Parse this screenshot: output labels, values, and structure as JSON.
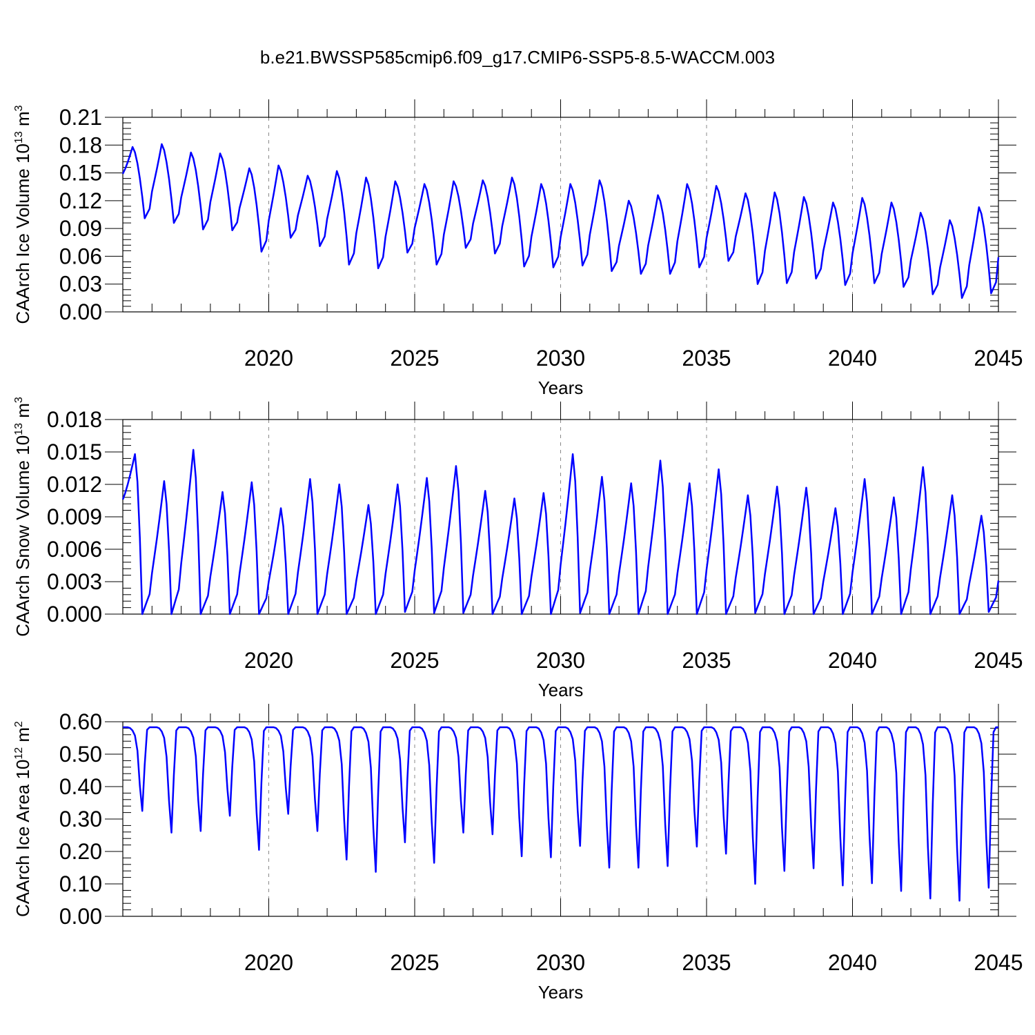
{
  "title": "b.e21.BWSSP585cmip6.f09_g17.CMIP6-SSP5-8.5-WACCM.003",
  "colors": {
    "series": "#0000ff",
    "axis": "#000000",
    "grid": "#888888"
  },
  "chart_data": [
    {
      "type": "line",
      "name": "ice-volume",
      "ylabel": {
        "text": "CAArch Ice Volume 10",
        "exp": "13",
        "unit": " m",
        "unit_exp": "3"
      },
      "xlabel": "Years",
      "xlim": [
        2015,
        2045
      ],
      "ylim": [
        0,
        0.21
      ],
      "xticks": [
        2020,
        2025,
        2030,
        2035,
        2040,
        2045
      ],
      "yticks": [
        0.0,
        0.03,
        0.06,
        0.09,
        0.12,
        0.15,
        0.18,
        0.21
      ],
      "ytick_labels": [
        "0.00",
        "0.03",
        "0.06",
        "0.09",
        "0.12",
        "0.15",
        "0.18",
        "0.21"
      ],
      "ygrid": true,
      "xgrid": true,
      "seasonal": {
        "peak_month": 4,
        "trough_month": 9,
        "peaks": [
          0.178,
          0.181,
          0.172,
          0.171,
          0.155,
          0.158,
          0.147,
          0.152,
          0.145,
          0.141,
          0.138,
          0.141,
          0.142,
          0.145,
          0.138,
          0.138,
          0.142,
          0.12,
          0.126,
          0.138,
          0.136,
          0.128,
          0.129,
          0.124,
          0.118,
          0.123,
          0.118,
          0.107,
          0.099,
          0.113
        ],
        "troughs": [
          0.101,
          0.096,
          0.089,
          0.088,
          0.065,
          0.08,
          0.071,
          0.051,
          0.047,
          0.064,
          0.051,
          0.069,
          0.063,
          0.049,
          0.048,
          0.05,
          0.044,
          0.041,
          0.041,
          0.048,
          0.055,
          0.03,
          0.031,
          0.036,
          0.029,
          0.031,
          0.027,
          0.019,
          0.015,
          0.02
        ],
        "start": 0.149,
        "end": 0.059
      }
    },
    {
      "type": "line",
      "name": "snow-volume",
      "ylabel": {
        "text": "CAArch Snow Volume 10",
        "exp": "13",
        "unit": " m",
        "unit_exp": "3"
      },
      "xlabel": "Years",
      "xlim": [
        2015,
        2045
      ],
      "ylim": [
        0,
        0.018
      ],
      "xticks": [
        2020,
        2025,
        2030,
        2035,
        2040,
        2045
      ],
      "yticks": [
        0.0,
        0.003,
        0.006,
        0.009,
        0.012,
        0.015,
        0.018
      ],
      "ytick_labels": [
        "0.000",
        "0.003",
        "0.006",
        "0.009",
        "0.012",
        "0.015",
        "0.018"
      ],
      "ygrid": true,
      "xgrid": true,
      "seasonal": {
        "peak_month": 5,
        "trough_month": 8,
        "peaks": [
          0.0148,
          0.0123,
          0.0152,
          0.0113,
          0.0122,
          0.0098,
          0.0125,
          0.012,
          0.0101,
          0.012,
          0.0126,
          0.0137,
          0.0114,
          0.0107,
          0.0112,
          0.0148,
          0.0127,
          0.0121,
          0.0142,
          0.0121,
          0.0134,
          0.011,
          0.0118,
          0.0117,
          0.0098,
          0.0125,
          0.0108,
          0.0136,
          0.011,
          0.0091
        ],
        "troughs": [
          0.0,
          0.0,
          0.0,
          0.0,
          0.0,
          0.0,
          0.0,
          0.0,
          0.0,
          0.0002,
          0.0001,
          0.0001,
          0.0,
          0.0,
          0.0,
          0.0001,
          0.0,
          0.0,
          0.0,
          0.0,
          0.0,
          0.0001,
          0.0,
          0.0,
          0.0,
          0.0,
          0.0,
          0.0,
          0.0,
          0.0002
        ],
        "start": 0.0106,
        "end": 0.0031
      }
    },
    {
      "type": "line",
      "name": "ice-area",
      "ylabel": {
        "text": "CAArch Ice Area 10",
        "exp": "12",
        "unit": " m",
        "unit_exp": "2"
      },
      "xlabel": "Years",
      "xlim": [
        2015,
        2045
      ],
      "ylim": [
        0,
        0.6
      ],
      "xticks": [
        2020,
        2025,
        2030,
        2035,
        2040,
        2045
      ],
      "yticks": [
        0.0,
        0.1,
        0.2,
        0.3,
        0.4,
        0.5,
        0.6
      ],
      "ytick_labels": [
        "0.00",
        "0.10",
        "0.20",
        "0.30",
        "0.40",
        "0.50",
        "0.60"
      ],
      "ygrid": true,
      "xgrid": true,
      "seasonal": {
        "plateau": 0.583,
        "troughs": [
          0.325,
          0.258,
          0.263,
          0.31,
          0.205,
          0.316,
          0.263,
          0.175,
          0.137,
          0.228,
          0.165,
          0.258,
          0.253,
          0.185,
          0.182,
          0.217,
          0.15,
          0.15,
          0.155,
          0.215,
          0.193,
          0.1,
          0.14,
          0.148,
          0.095,
          0.102,
          0.078,
          0.055,
          0.048,
          0.088
        ],
        "start": 0.583,
        "end": 0.583
      }
    }
  ]
}
